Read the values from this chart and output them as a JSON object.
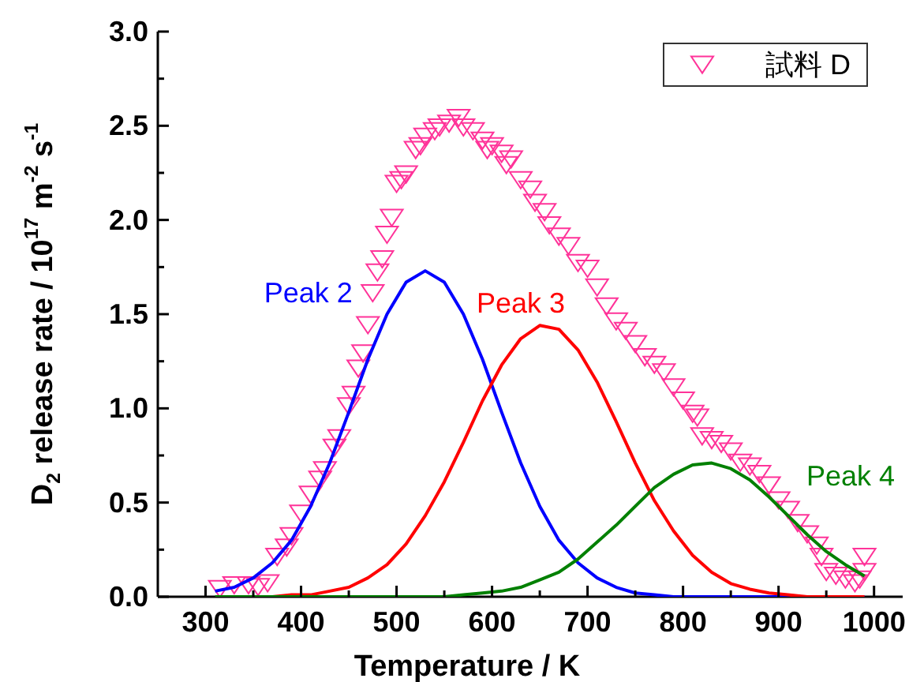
{
  "chart_data": {
    "type": "scatter",
    "xlabel": "Temperature / K",
    "ylabel": "D$_{2}$ release rate / 10$^{17}$ m$^{-2}$ s$^{-1}$",
    "xlim": [
      250,
      1030
    ],
    "xticks": [
      300,
      {
        "value": 350,
        "label": null
      },
      400,
      {
        "value": 450,
        "label": null
      },
      500,
      {
        "value": 550,
        "label": null
      },
      600,
      {
        "value": 650,
        "label": null
      },
      700,
      {
        "value": 750,
        "label": null
      },
      800,
      {
        "value": 850,
        "label": null
      },
      900,
      {
        "value": 950,
        "label": null
      },
      1000
    ],
    "ylim": [
      0,
      3
    ],
    "yticks": [
      {
        "value": 0,
        "label": "0.0"
      },
      {
        "value": 0.25,
        "label": null
      },
      {
        "value": 0.5,
        "label": "0.5"
      },
      {
        "value": 0.75,
        "label": null
      },
      {
        "value": 1,
        "label": "1.0"
      },
      {
        "value": 1.25,
        "label": null
      },
      {
        "value": 1.5,
        "label": "1.5"
      },
      {
        "value": 1.75,
        "label": null
      },
      {
        "value": 2,
        "label": "2.0"
      },
      {
        "value": 2.25,
        "label": null
      },
      {
        "value": 2.5,
        "label": "2.5"
      },
      {
        "value": 2.75,
        "label": null
      },
      {
        "value": 3,
        "label": "3.0"
      }
    ],
    "legend": "top right",
    "series": [
      {
        "name": "試料 D",
        "marker": "triangle",
        "color": "#ff3399",
        "x": [
          315,
          330,
          345,
          355,
          365,
          375,
          385,
          390,
          400,
          410,
          420,
          425,
          435,
          440,
          450,
          455,
          460,
          465,
          470,
          475,
          480,
          485,
          490,
          495,
          500,
          505,
          510,
          520,
          525,
          530,
          540,
          545,
          555,
          565,
          570,
          580,
          590,
          595,
          600,
          610,
          615,
          620,
          630,
          640,
          645,
          655,
          660,
          670,
          680,
          690,
          700,
          710,
          720,
          730,
          740,
          750,
          760,
          770,
          780,
          790,
          800,
          810,
          815,
          820,
          830,
          840,
          850,
          860,
          870,
          880,
          890,
          900,
          910,
          920,
          930,
          940,
          945,
          950,
          960,
          970,
          980,
          985,
          990,
          990
        ],
        "values": [
          0.05,
          0.07,
          0.07,
          0.06,
          0.08,
          0.22,
          0.27,
          0.33,
          0.45,
          0.55,
          0.63,
          0.68,
          0.8,
          0.85,
          1.02,
          1.08,
          1.22,
          1.3,
          1.45,
          1.62,
          1.73,
          1.8,
          1.93,
          2.02,
          2.2,
          2.22,
          2.25,
          2.38,
          2.4,
          2.45,
          2.48,
          2.5,
          2.52,
          2.55,
          2.5,
          2.48,
          2.43,
          2.38,
          2.4,
          2.36,
          2.3,
          2.33,
          2.22,
          2.17,
          2.1,
          2.05,
          1.98,
          1.92,
          1.87,
          1.78,
          1.75,
          1.65,
          1.55,
          1.47,
          1.42,
          1.35,
          1.28,
          1.24,
          1.2,
          1.12,
          1.05,
          0.98,
          0.96,
          0.86,
          0.84,
          0.82,
          0.78,
          0.72,
          0.7,
          0.66,
          0.6,
          0.52,
          0.47,
          0.4,
          0.34,
          0.28,
          0.22,
          0.14,
          0.12,
          0.1,
          0.08,
          0.1,
          0.14,
          0.22
        ]
      },
      {
        "name": "Peak 2",
        "type": "line",
        "marker": "none",
        "color": "#0000ff",
        "x": [
          310,
          330,
          350,
          370,
          390,
          410,
          430,
          450,
          470,
          490,
          510,
          530,
          550,
          570,
          590,
          610,
          630,
          650,
          670,
          690,
          710,
          730,
          750,
          770,
          790,
          810,
          850,
          900,
          950,
          990
        ],
        "values": [
          0.03,
          0.05,
          0.1,
          0.18,
          0.3,
          0.48,
          0.71,
          0.98,
          1.26,
          1.5,
          1.67,
          1.73,
          1.67,
          1.5,
          1.26,
          0.98,
          0.71,
          0.48,
          0.3,
          0.18,
          0.1,
          0.05,
          0.02,
          0.01,
          0,
          0,
          0,
          0,
          0,
          0
        ]
      },
      {
        "name": "Peak 3",
        "type": "line",
        "marker": "none",
        "color": "#ff0000",
        "x": [
          350,
          370,
          390,
          410,
          430,
          450,
          470,
          490,
          510,
          530,
          550,
          570,
          590,
          610,
          630,
          650,
          670,
          690,
          710,
          730,
          750,
          770,
          790,
          810,
          830,
          850,
          870,
          890,
          910,
          930,
          950,
          970,
          990
        ],
        "values": [
          0,
          0,
          0.01,
          0.01,
          0.03,
          0.05,
          0.1,
          0.17,
          0.28,
          0.43,
          0.61,
          0.82,
          1.04,
          1.23,
          1.37,
          1.44,
          1.42,
          1.31,
          1.14,
          0.93,
          0.71,
          0.51,
          0.35,
          0.22,
          0.13,
          0.07,
          0.04,
          0.02,
          0.01,
          0,
          0,
          0,
          0
        ]
      },
      {
        "name": "Peak 4",
        "type": "line",
        "marker": "none",
        "color": "#008000",
        "x": [
          310,
          350,
          400,
          450,
          490,
          510,
          530,
          550,
          570,
          590,
          610,
          630,
          650,
          670,
          690,
          710,
          730,
          750,
          770,
          790,
          810,
          830,
          850,
          870,
          890,
          910,
          930,
          950,
          970,
          990
        ],
        "values": [
          0,
          0,
          0,
          0,
          0,
          0,
          0,
          0,
          0.01,
          0.02,
          0.03,
          0.05,
          0.09,
          0.13,
          0.2,
          0.29,
          0.38,
          0.48,
          0.58,
          0.65,
          0.7,
          0.71,
          0.68,
          0.62,
          0.53,
          0.43,
          0.33,
          0.24,
          0.17,
          0.11
        ]
      }
    ]
  }
}
